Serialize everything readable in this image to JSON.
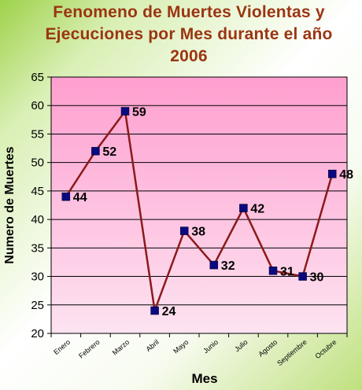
{
  "chart_data": {
    "type": "line",
    "title": "Fenomeno de Muertes Violentas y Ejecuciones por Mes durante el año 2006",
    "title_lines": [
      "Fenomeno de Muertes Violentas y",
      "Ejecuciones por Mes durante el año",
      "2006"
    ],
    "xlabel": "Mes",
    "ylabel": "Numero de Muertes",
    "categories": [
      "Enero",
      "Febrero",
      "Marzo",
      "Abril",
      "Mayo",
      "Junio",
      "Julio",
      "Agosto",
      "Septiembre",
      "Octubre"
    ],
    "series": [
      {
        "values": [
          44,
          52,
          59,
          24,
          38,
          32,
          42,
          31,
          30,
          48
        ]
      }
    ],
    "ylim": [
      20,
      65
    ],
    "yticks": [
      20,
      25,
      30,
      35,
      40,
      45,
      50,
      55,
      60,
      65
    ],
    "grid": true,
    "data_labels": true,
    "colors": {
      "line": "#8b1a1a",
      "marker": "#0a0a80",
      "title": "#9b3512",
      "plot_top": "#ff9fcf",
      "plot_bottom": "#fde3f1"
    }
  }
}
